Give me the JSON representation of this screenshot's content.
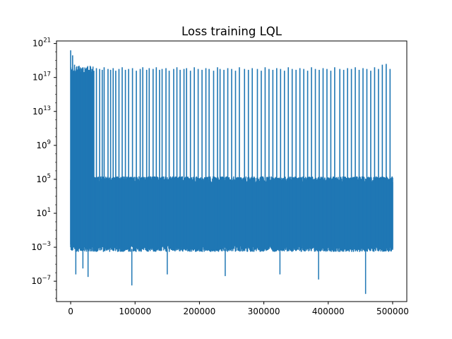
{
  "chart_data": {
    "type": "line",
    "title": "Loss training LQL",
    "xlabel": "",
    "ylabel": "",
    "x_range": [
      0,
      500000
    ],
    "xlim": [
      -22000,
      522000
    ],
    "yscale": "log",
    "ylim_log10": [
      -9.4,
      21.3
    ],
    "grid": false,
    "legend": "none",
    "color": "#1f77b4",
    "x_ticks": [
      {
        "value": 0,
        "label": "0"
      },
      {
        "value": 100000,
        "label": "100000"
      },
      {
        "value": 200000,
        "label": "200000"
      },
      {
        "value": 300000,
        "label": "300000"
      },
      {
        "value": 400000,
        "label": "400000"
      },
      {
        "value": 500000,
        "label": "500000"
      }
    ],
    "y_ticks": [
      {
        "exp": -7,
        "base": "10",
        "sup": "−7"
      },
      {
        "exp": -3,
        "base": "10",
        "sup": "−3"
      },
      {
        "exp": 1,
        "base": "10",
        "sup": "1"
      },
      {
        "exp": 5,
        "base": "10",
        "sup": "5"
      },
      {
        "exp": 9,
        "base": "10",
        "sup": "9"
      },
      {
        "exp": 13,
        "base": "10",
        "sup": "13"
      },
      {
        "exp": 17,
        "base": "10",
        "sup": "17"
      },
      {
        "exp": 21,
        "base": "10",
        "sup": "21"
      }
    ],
    "series": [
      {
        "values_description_free": true,
        "dense_band_log10": [
          -3.5,
          5.3
        ],
        "spike_max_log10": 20.2,
        "spike_typical_log10": [
          17.8,
          18.3
        ],
        "extreme_lows": [
          {
            "x": 8000,
            "log10": -6.2
          },
          {
            "x": 19000,
            "log10": -5.5
          },
          {
            "x": 27000,
            "log10": -6.5
          },
          {
            "x": 95000,
            "log10": -7.5
          },
          {
            "x": 150000,
            "log10": -6.2
          },
          {
            "x": 240000,
            "log10": -6.4
          },
          {
            "x": 325000,
            "log10": -6.2
          },
          {
            "x": 385000,
            "log10": -6.8
          },
          {
            "x": 458000,
            "log10": -8.5
          }
        ],
        "spikes_x": [
          0,
          3000,
          6000,
          9000,
          12000,
          15000,
          19000,
          24000,
          28000,
          33000,
          36000,
          40000,
          45000,
          49000,
          52000,
          58000,
          62000,
          66000,
          70000,
          75000,
          80000,
          85000,
          90000,
          96000,
          102000,
          108000,
          112000,
          118000,
          122000,
          128000,
          133000,
          138000,
          142000,
          148000,
          153000,
          160000,
          165000,
          170000,
          176000,
          180000,
          186000,
          192000,
          198000,
          204000,
          210000,
          215000,
          222000,
          228000,
          232000,
          238000,
          244000,
          250000,
          256000,
          262000,
          270000,
          276000,
          282000,
          290000,
          296000,
          302000,
          308000,
          314000,
          320000,
          326000,
          332000,
          338000,
          344000,
          350000,
          356000,
          362000,
          368000,
          374000,
          380000,
          386000,
          392000,
          398000,
          404000,
          410000,
          418000,
          424000,
          430000,
          436000,
          442000,
          448000,
          454000,
          460000,
          466000,
          472000,
          478000,
          484000,
          490000,
          496000
        ],
        "spikes_log10": [
          20.2,
          19.6,
          18.5,
          18.2,
          18.3,
          18.1,
          18.2,
          18.0,
          17.9,
          18.0,
          17.8,
          18.1,
          18.0,
          17.9,
          18.2,
          18.0,
          17.9,
          18.1,
          17.8,
          18.0,
          18.2,
          17.9,
          18.0,
          18.1,
          17.8,
          18.0,
          18.2,
          17.9,
          18.1,
          18.0,
          18.2,
          17.9,
          18.0,
          18.1,
          17.8,
          18.0,
          18.2,
          17.9,
          18.0,
          18.1,
          17.8,
          18.2,
          18.0,
          17.9,
          18.1,
          18.0,
          17.8,
          18.2,
          18.0,
          17.9,
          18.1,
          18.0,
          17.8,
          18.2,
          18.0,
          17.9,
          18.1,
          18.0,
          17.8,
          18.2,
          18.0,
          17.9,
          18.1,
          18.0,
          17.8,
          18.2,
          18.0,
          17.9,
          18.1,
          18.0,
          17.8,
          18.2,
          18.0,
          17.9,
          18.1,
          18.0,
          17.8,
          18.2,
          18.0,
          17.9,
          18.1,
          18.0,
          18.2,
          17.9,
          18.1,
          18.0,
          17.8,
          18.2,
          18.0,
          18.5,
          18.6,
          18.0
        ]
      }
    ]
  }
}
